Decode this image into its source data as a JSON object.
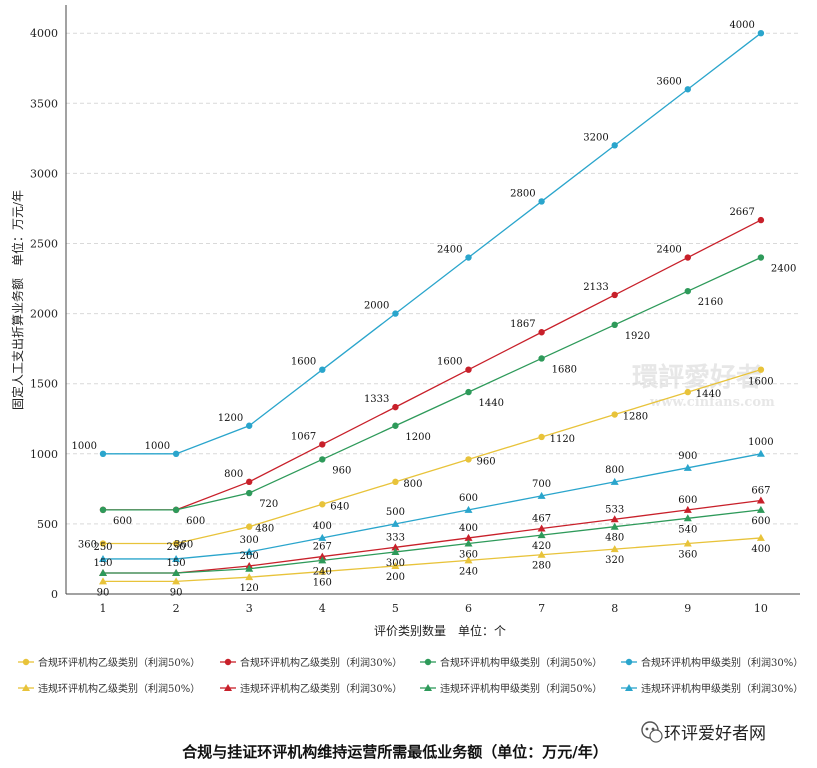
{
  "chart_data": {
    "type": "line",
    "title": "",
    "xlabel": "评价类别数量　单位：个",
    "ylabel": "固定人工支出折算业务额　单位：万元/年",
    "x": [
      1,
      2,
      3,
      4,
      5,
      6,
      7,
      8,
      9,
      10
    ],
    "ylim": [
      0,
      4200
    ],
    "yticks": [
      0,
      500,
      1000,
      1500,
      2000,
      2500,
      3000,
      3500,
      4000
    ],
    "grid": "horizontal dashed",
    "legend_position": "bottom",
    "series": [
      {
        "name": "合规环评机构乙级类别（利润50%）",
        "marker": "circle",
        "color": "#e8c33a",
        "values": [
          360,
          360,
          480,
          640,
          800,
          960,
          1120,
          1280,
          1440,
          1600
        ],
        "labels": [
          "360",
          "360",
          "480",
          "640",
          "800",
          "960",
          "1120",
          "1280",
          "1440",
          "1600"
        ]
      },
      {
        "name": "合规环评机构乙级类别（利润30%）",
        "marker": "circle",
        "color": "#c8202a",
        "values": [
          600,
          600,
          800,
          1067,
          1333,
          1600,
          1867,
          2133,
          2400,
          2667
        ],
        "labels": [
          "",
          "",
          "800",
          "1067",
          "1333",
          "1600",
          "1867",
          "2133",
          "2400",
          "2667"
        ]
      },
      {
        "name": "合规环评机构甲级类别（利润50%）",
        "marker": "circle",
        "color": "#2e9a5a",
        "values": [
          600,
          600,
          720,
          960,
          1200,
          1440,
          1680,
          1920,
          2160,
          2400
        ],
        "labels": [
          "600",
          "600",
          "720",
          "960",
          "1200",
          "1440",
          "1680",
          "1920",
          "2160",
          "2400"
        ]
      },
      {
        "name": "合规环评机构甲级类别（利润30%）",
        "marker": "circle",
        "color": "#2aa5cc",
        "values": [
          1000,
          1000,
          1200,
          1600,
          2000,
          2400,
          2800,
          3200,
          3600,
          4000
        ],
        "labels": [
          "1000",
          "1000",
          "1200",
          "1600",
          "2000",
          "2400",
          "2800",
          "3200",
          "3600",
          "4000"
        ]
      },
      {
        "name": "违规环评机构乙级类别（利润50%）",
        "marker": "triangle",
        "color": "#e8c33a",
        "values": [
          90,
          90,
          120,
          160,
          200,
          240,
          280,
          320,
          360,
          400
        ],
        "labels": [
          "90",
          "90",
          "120",
          "160",
          "200",
          "240",
          "280",
          "320",
          "360",
          "400"
        ]
      },
      {
        "name": "违规环评机构乙级类别（利润30%）",
        "marker": "triangle",
        "color": "#c8202a",
        "values": [
          150,
          150,
          200,
          267,
          333,
          400,
          467,
          533,
          600,
          667
        ],
        "labels": [
          "150",
          "150",
          "200",
          "267",
          "333",
          "400",
          "467",
          "533",
          "600",
          "667"
        ]
      },
      {
        "name": "违规环评机构甲级类别（利润50%）",
        "marker": "triangle",
        "color": "#2e9a5a",
        "values": [
          150,
          150,
          180,
          240,
          300,
          360,
          420,
          480,
          540,
          600
        ],
        "labels": [
          "",
          "",
          "",
          "240",
          "300",
          "360",
          "420",
          "480",
          "540",
          "600"
        ]
      },
      {
        "name": "违规环评机构甲级类别（利润30%）",
        "marker": "triangle",
        "color": "#2aa5cc",
        "values": [
          250,
          250,
          300,
          400,
          500,
          600,
          700,
          800,
          900,
          1000
        ],
        "labels": [
          "250",
          "250",
          "300",
          "400",
          "500",
          "600",
          "700",
          "800",
          "900",
          "1000"
        ]
      }
    ]
  },
  "caption": "合规与挂证环评机构维持运营所需最低业务额（单位：万元/年）",
  "watermark": {
    "line1": "環評愛好者",
    "line2": "www.cinfans.com"
  },
  "brand": {
    "name": "环评爱好者网",
    "icon": "wechat-icon"
  }
}
